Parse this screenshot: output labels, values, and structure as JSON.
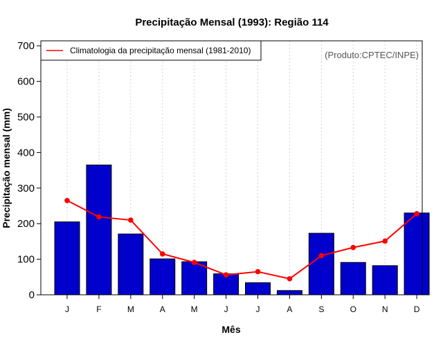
{
  "chart_data": {
    "type": "bar",
    "title": "Precipitação Mensal (1993): Região 114",
    "xlabel": "Mês",
    "ylabel": "Precipitação mensal (mm)",
    "ylim": [
      0,
      700
    ],
    "yticks": [
      0,
      100,
      200,
      300,
      400,
      500,
      600,
      700
    ],
    "categories": [
      "J",
      "F",
      "M",
      "A",
      "M",
      "J",
      "J",
      "A",
      "S",
      "O",
      "N",
      "D"
    ],
    "series": [
      {
        "name": "Precipitação mensal (1993)",
        "type": "bar",
        "color": "#0000cc",
        "values": [
          205,
          365,
          171,
          101,
          93,
          59,
          34,
          12,
          173,
          91,
          82,
          230
        ]
      },
      {
        "name": "Climatologia da precipitação mensal (1981-2010)",
        "type": "line",
        "color": "#ff0000",
        "values": [
          265,
          219,
          210,
          115,
          91,
          56,
          65,
          45,
          110,
          133,
          151,
          228
        ]
      }
    ],
    "legend": {
      "position": "top-left",
      "label": "Climatologia da precipitação mensal (1981-2010)"
    },
    "annotation": "(Produto:CPTEC/INPE)",
    "grid": "vertical-dotted"
  }
}
